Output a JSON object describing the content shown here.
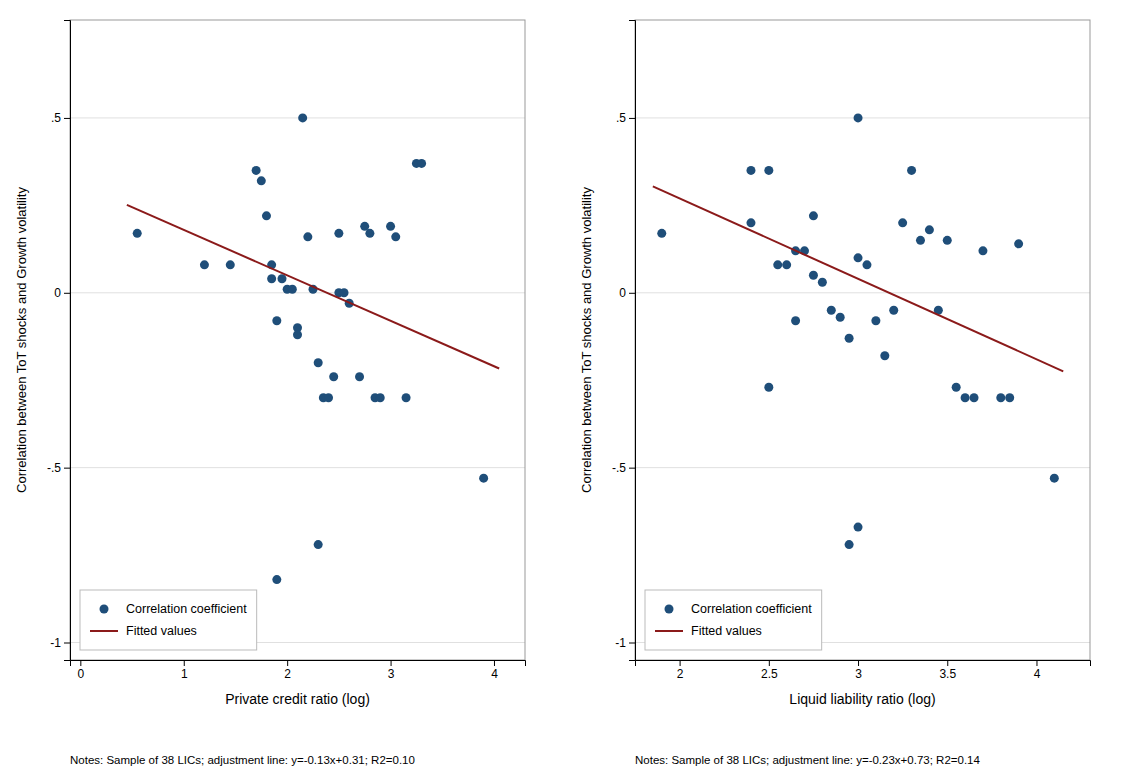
{
  "chart_data": [
    {
      "type": "scatter",
      "x_label": "Private credit ratio (log)",
      "y_label": "Correlation between ToT shocks and Growth volatility",
      "note": "Notes: Sample of 38 LICs; adjustment line: y=-0.13x+0.31; R2=0.10",
      "xlim": [
        -0.1,
        4.3
      ],
      "ylim": [
        -1.05,
        0.78
      ],
      "xticks": [
        0,
        1,
        2,
        3,
        4
      ],
      "yticks": [
        -1,
        {
          "value": -0.5,
          "label": "-.5"
        },
        0,
        {
          "value": 0.5,
          "label": ".5"
        }
      ],
      "grid": "y",
      "legend": "lower left",
      "series": [
        {
          "name": "Correlation coefficient",
          "type": "scatter",
          "color": "#1f4e79",
          "marker": "circle",
          "x": [
            0.55,
            1.2,
            1.45,
            1.7,
            1.75,
            1.8,
            1.85,
            1.85,
            1.9,
            1.95,
            2.0,
            2.05,
            2.1,
            2.1,
            2.15,
            2.2,
            2.25,
            2.3,
            2.35,
            2.4,
            2.45,
            2.5,
            2.5,
            2.55,
            2.6,
            2.7,
            2.75,
            2.8,
            2.85,
            2.9,
            3.0,
            3.05,
            3.15,
            3.25,
            3.3,
            3.9,
            2.3,
            1.9
          ],
          "values": [
            0.17,
            0.08,
            0.08,
            0.35,
            0.32,
            0.22,
            0.08,
            0.04,
            -0.08,
            0.04,
            0.01,
            0.01,
            -0.1,
            -0.12,
            0.5,
            0.16,
            0.01,
            -0.2,
            -0.3,
            -0.3,
            -0.24,
            0.17,
            0.0,
            0.0,
            -0.03,
            -0.24,
            0.19,
            0.17,
            -0.3,
            -0.3,
            0.19,
            0.16,
            -0.3,
            0.37,
            0.37,
            -0.53,
            -0.72,
            -0.82
          ]
        },
        {
          "name": "Fitted values",
          "type": "line",
          "color": "#8b1a1a",
          "line_style": "solid",
          "x": [
            0.45,
            4.05
          ],
          "values": [
            0.2515,
            -0.2165
          ]
        }
      ]
    },
    {
      "type": "scatter",
      "x_label": "Liquid liability ratio (log)",
      "y_label": "Correlation between ToT shocks and Growth volatility",
      "note": "Notes: Sample of 38 LICs; adjustment line: y=-0.23x+0.73; R2=0.14",
      "xlim": [
        1.75,
        4.3
      ],
      "ylim": [
        -1.05,
        0.78
      ],
      "xticks": [
        2,
        2.5,
        3,
        3.5,
        4
      ],
      "yticks": [
        -1,
        {
          "value": -0.5,
          "label": "-.5"
        },
        0,
        {
          "value": 0.5,
          "label": ".5"
        }
      ],
      "grid": "y",
      "legend": "lower left",
      "series": [
        {
          "name": "Correlation coefficient",
          "type": "scatter",
          "color": "#1f4e79",
          "marker": "circle",
          "x": [
            1.9,
            2.4,
            2.5,
            2.55,
            2.6,
            2.65,
            2.65,
            2.7,
            2.75,
            2.8,
            2.85,
            2.9,
            2.95,
            3.0,
            3.0,
            3.05,
            3.1,
            3.15,
            3.2,
            3.25,
            3.3,
            3.35,
            3.4,
            3.45,
            3.5,
            3.55,
            3.6,
            3.65,
            3.7,
            3.8,
            3.85,
            3.9,
            4.1,
            2.95,
            2.5,
            3.0,
            2.4,
            2.75
          ],
          "values": [
            0.17,
            0.2,
            0.35,
            0.08,
            0.08,
            0.12,
            -0.08,
            0.12,
            0.05,
            0.03,
            -0.05,
            -0.07,
            -0.13,
            0.5,
            0.1,
            0.08,
            -0.08,
            -0.18,
            -0.05,
            0.2,
            0.35,
            0.15,
            0.18,
            -0.05,
            0.15,
            -0.27,
            -0.3,
            -0.3,
            0.12,
            -0.3,
            -0.3,
            0.14,
            -0.53,
            -0.72,
            -0.27,
            -0.67,
            0.35,
            0.22
          ]
        },
        {
          "name": "Fitted values",
          "type": "line",
          "color": "#8b1a1a",
          "line_style": "solid",
          "x": [
            1.85,
            4.15
          ],
          "values": [
            0.3045,
            -0.2245
          ]
        }
      ]
    }
  ]
}
